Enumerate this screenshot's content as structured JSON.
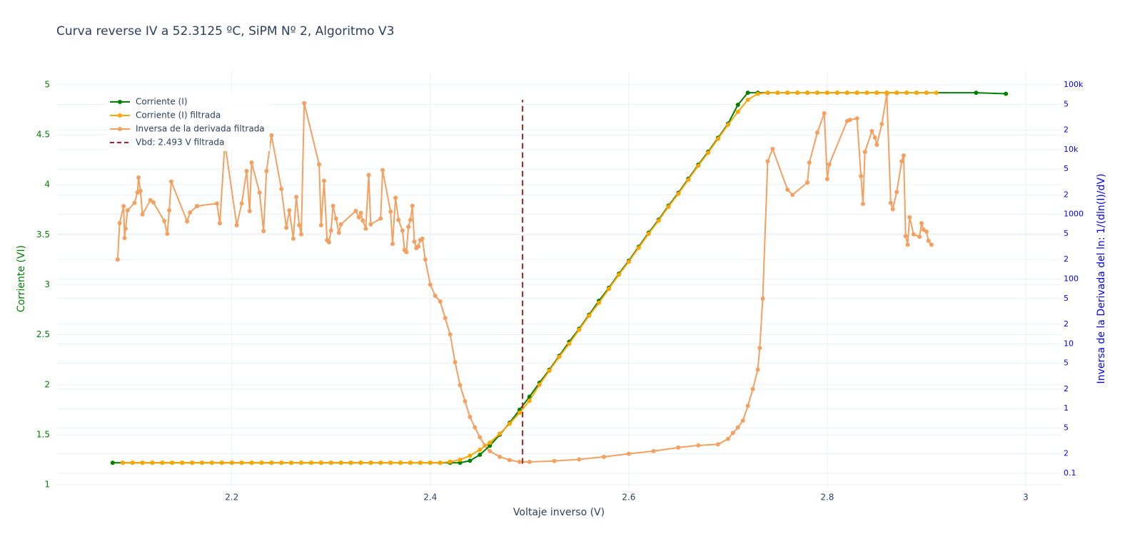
{
  "chart_data": {
    "type": "line",
    "title": "Curva reverse IV a 52.3125 ºC, SiPM Nº 2, Algoritmo V3",
    "x_label": "Voltaje inverso (V)",
    "y_label": "Corriente (VI)",
    "y2_label": "Inversa de la Derivada del ln: 1/(dln(I)/dV)",
    "y_color": "#008000",
    "y2_color": "#0000ff",
    "xlim": [
      2.024,
      3.036
    ],
    "xticks": [
      2.2,
      2.4,
      2.6,
      2.8,
      3
    ],
    "ylim": [
      0.979,
      5.135
    ],
    "yticks": [
      1,
      1.5,
      2,
      2.5,
      3,
      3.5,
      4,
      4.5,
      5
    ],
    "y2log": true,
    "y2lim": [
      0.0618,
      161800
    ],
    "y2ticks": [
      0.1,
      {
        "value": 0.2,
        "label": "2"
      },
      {
        "value": 0.5,
        "label": "5"
      },
      1,
      2,
      5,
      10,
      {
        "value": 20,
        "label": "2"
      },
      {
        "value": 50,
        "label": "5"
      },
      100,
      {
        "value": 200,
        "label": "2"
      },
      {
        "value": 500,
        "label": "5"
      },
      1000,
      {
        "value": 2000,
        "label": "2"
      },
      {
        "value": 5000,
        "label": "5"
      },
      {
        "value": 10000,
        "label": "10k"
      },
      {
        "value": 20000,
        "label": "2"
      },
      {
        "value": 50000,
        "label": "5"
      },
      {
        "value": 100000,
        "label": "100k"
      }
    ],
    "grid": true,
    "legend": "top-left",
    "series": [
      {
        "name": "Corriente (I)",
        "color": "#008000",
        "axis": "y",
        "x": [
          2.08,
          2.09,
          2.1,
          2.11,
          2.12,
          2.13,
          2.14,
          2.15,
          2.16,
          2.17,
          2.18,
          2.19,
          2.2,
          2.21,
          2.22,
          2.23,
          2.24,
          2.25,
          2.26,
          2.27,
          2.28,
          2.29,
          2.3,
          2.31,
          2.32,
          2.33,
          2.34,
          2.35,
          2.36,
          2.37,
          2.38,
          2.39,
          2.4,
          2.41,
          2.42,
          2.43,
          2.44,
          2.45,
          2.46,
          2.47,
          2.48,
          2.49,
          2.5,
          2.51,
          2.52,
          2.53,
          2.54,
          2.55,
          2.56,
          2.57,
          2.58,
          2.59,
          2.6,
          2.61,
          2.62,
          2.63,
          2.64,
          2.65,
          2.66,
          2.67,
          2.68,
          2.69,
          2.7,
          2.71,
          2.72,
          2.73,
          2.74,
          2.75,
          2.76,
          2.77,
          2.78,
          2.79,
          2.8,
          2.81,
          2.82,
          2.83,
          2.84,
          2.85,
          2.86,
          2.87,
          2.88,
          2.89,
          2.9,
          2.95,
          2.98
        ],
        "values": [
          1.22,
          1.22,
          1.22,
          1.22,
          1.22,
          1.22,
          1.22,
          1.22,
          1.22,
          1.22,
          1.22,
          1.22,
          1.22,
          1.22,
          1.22,
          1.22,
          1.22,
          1.22,
          1.22,
          1.22,
          1.22,
          1.22,
          1.22,
          1.22,
          1.22,
          1.22,
          1.22,
          1.22,
          1.22,
          1.22,
          1.22,
          1.22,
          1.22,
          1.22,
          1.22,
          1.22,
          1.24,
          1.3,
          1.39,
          1.5,
          1.62,
          1.75,
          1.88,
          2.02,
          2.15,
          2.29,
          2.43,
          2.56,
          2.7,
          2.84,
          2.97,
          3.11,
          3.24,
          3.38,
          3.52,
          3.65,
          3.79,
          3.92,
          4.06,
          4.2,
          4.33,
          4.47,
          4.61,
          4.8,
          4.92,
          4.92,
          4.92,
          4.92,
          4.92,
          4.92,
          4.92,
          4.92,
          4.92,
          4.92,
          4.92,
          4.92,
          4.92,
          4.92,
          4.92,
          4.92,
          4.92,
          4.92,
          4.92,
          4.92,
          4.91
        ]
      },
      {
        "name": "Corriente (I) filtrada",
        "color": "#ffa500",
        "axis": "y",
        "x": [
          2.09,
          2.1,
          2.11,
          2.12,
          2.13,
          2.14,
          2.15,
          2.16,
          2.17,
          2.18,
          2.19,
          2.2,
          2.21,
          2.22,
          2.23,
          2.24,
          2.25,
          2.26,
          2.27,
          2.28,
          2.29,
          2.3,
          2.31,
          2.32,
          2.33,
          2.34,
          2.35,
          2.36,
          2.37,
          2.38,
          2.39,
          2.4,
          2.41,
          2.42,
          2.43,
          2.44,
          2.45,
          2.46,
          2.47,
          2.48,
          2.49,
          2.5,
          2.51,
          2.52,
          2.53,
          2.54,
          2.55,
          2.56,
          2.57,
          2.58,
          2.59,
          2.6,
          2.61,
          2.62,
          2.63,
          2.64,
          2.65,
          2.66,
          2.67,
          2.68,
          2.69,
          2.7,
          2.71,
          2.72,
          2.73,
          2.74,
          2.75,
          2.76,
          2.77,
          2.78,
          2.79,
          2.8,
          2.81,
          2.82,
          2.83,
          2.84,
          2.85,
          2.86,
          2.87,
          2.88,
          2.89,
          2.9,
          2.91
        ],
        "values": [
          1.22,
          1.22,
          1.22,
          1.22,
          1.22,
          1.22,
          1.22,
          1.22,
          1.22,
          1.22,
          1.22,
          1.22,
          1.22,
          1.22,
          1.22,
          1.22,
          1.22,
          1.22,
          1.22,
          1.22,
          1.22,
          1.22,
          1.22,
          1.22,
          1.22,
          1.22,
          1.22,
          1.22,
          1.22,
          1.22,
          1.22,
          1.22,
          1.22,
          1.23,
          1.25,
          1.29,
          1.35,
          1.42,
          1.51,
          1.61,
          1.72,
          1.84,
          2.0,
          2.14,
          2.28,
          2.41,
          2.55,
          2.69,
          2.82,
          2.96,
          3.1,
          3.23,
          3.37,
          3.51,
          3.64,
          3.78,
          3.91,
          4.05,
          4.19,
          4.32,
          4.46,
          4.6,
          4.73,
          4.85,
          4.91,
          4.92,
          4.92,
          4.92,
          4.92,
          4.92,
          4.92,
          4.92,
          4.92,
          4.92,
          4.92,
          4.92,
          4.92,
          4.92,
          4.92,
          4.92,
          4.92,
          4.92,
          4.92
        ]
      },
      {
        "name": "Inversa de la derivada filtrada",
        "color": "#f4a060",
        "axis": "y2",
        "x": [
          2.085,
          2.087,
          2.091,
          2.092,
          2.093,
          2.095,
          2.102,
          2.105,
          2.106,
          2.108,
          2.11,
          2.118,
          2.121,
          2.132,
          2.135,
          2.137,
          2.139,
          2.155,
          2.158,
          2.165,
          2.185,
          2.188,
          2.193,
          2.205,
          2.21,
          2.215,
          2.218,
          2.22,
          2.228,
          2.232,
          2.235,
          2.24,
          2.25,
          2.255,
          2.258,
          2.262,
          2.265,
          2.268,
          2.27,
          2.273,
          2.288,
          2.29,
          2.293,
          2.296,
          2.298,
          2.3,
          2.302,
          2.305,
          2.308,
          2.31,
          2.325,
          2.328,
          2.33,
          2.332,
          2.335,
          2.338,
          2.34,
          2.35,
          2.352,
          2.36,
          2.362,
          2.365,
          2.368,
          2.372,
          2.374,
          2.376,
          2.378,
          2.38,
          2.382,
          2.384,
          2.386,
          2.388,
          2.39,
          2.392,
          2.395,
          2.4,
          2.405,
          2.41,
          2.415,
          2.42,
          2.425,
          2.43,
          2.435,
          2.44,
          2.445,
          2.45,
          2.455,
          2.46,
          2.47,
          2.48,
          2.49,
          2.5,
          2.525,
          2.55,
          2.575,
          2.6,
          2.625,
          2.65,
          2.67,
          2.69,
          2.7,
          2.705,
          2.71,
          2.715,
          2.72,
          2.725,
          2.73,
          2.732,
          2.735,
          2.74,
          2.745,
          2.76,
          2.765,
          2.78,
          2.782,
          2.79,
          2.797,
          2.8,
          2.802,
          2.82,
          2.823,
          2.83,
          2.834,
          2.836,
          2.838,
          2.845,
          2.848,
          2.85,
          2.855,
          2.86,
          2.864,
          2.866,
          2.87,
          2.875,
          2.877,
          2.879,
          2.881,
          2.883,
          2.887,
          2.893,
          2.895,
          2.897,
          2.9,
          2.902,
          2.905
        ],
        "values": [
          200,
          730,
          1340,
          430,
          600,
          1150,
          1500,
          2170,
          3700,
          2300,
          1000,
          1650,
          1530,
          790,
          500,
          1150,
          3200,
          780,
          1070,
          1340,
          1470,
          730,
          12800,
          680,
          1470,
          4650,
          1120,
          6300,
          2170,
          550,
          4650,
          16600,
          2460,
          620,
          1150,
          420,
          1850,
          680,
          490,
          52000,
          5900,
          680,
          3300,
          400,
          370,
          560,
          1350,
          860,
          520,
          700,
          1130,
          900,
          1050,
          800,
          600,
          4050,
          700,
          860,
          4800,
          1100,
          350,
          1800,
          820,
          560,
          280,
          260,
          640,
          820,
          1350,
          380,
          300,
          320,
          400,
          420,
          200,
          82,
          55,
          45,
          25,
          14,
          5.2,
          2.3,
          1.3,
          0.74,
          0.51,
          0.36,
          0.27,
          0.22,
          0.18,
          0.16,
          0.15,
          0.15,
          0.155,
          0.164,
          0.18,
          0.2,
          0.22,
          0.25,
          0.27,
          0.28,
          0.34,
          0.42,
          0.51,
          0.65,
          1.1,
          2,
          4,
          8.6,
          50,
          6600,
          10200,
          2400,
          2000,
          3100,
          6300,
          18300,
          36300,
          3500,
          5900,
          27500,
          28800,
          30300,
          3900,
          1450,
          9200,
          19300,
          15300,
          11900,
          24800,
          71900,
          1500,
          1200,
          2200,
          6600,
          8100,
          460,
          340,
          900,
          490,
          450,
          730,
          580,
          540,
          390,
          340
        ]
      }
    ],
    "vline": {
      "x": 2.493,
      "name": "Vbd: 2.493 V filtrada",
      "color": "#b22222",
      "y": [
        1.21,
        4.85
      ]
    }
  }
}
